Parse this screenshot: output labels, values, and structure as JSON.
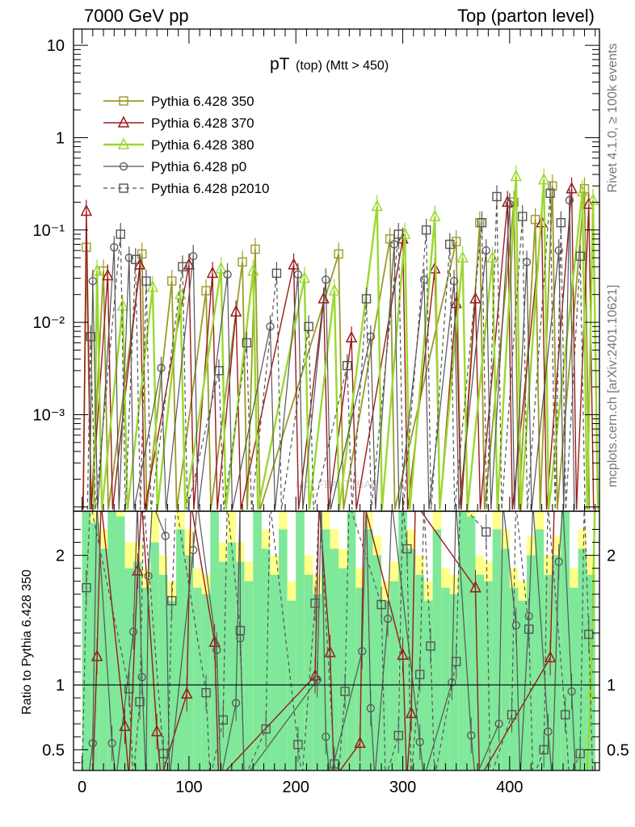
{
  "header": {
    "left": "7000 GeV pp",
    "right": "Top (parton level)"
  },
  "title": {
    "main": "pT",
    "sub": "(top) (Mtt > 450)"
  },
  "side_labels": {
    "rivet": "Rivet 4.1.0, ≥ 100k events",
    "mcplots": "mcplots.cern.ch [arXiv:2401.10621]"
  },
  "watermark": "MC_FBA_TTBAR",
  "colors": {
    "s350": "#9a9a2a",
    "s370": "#9b1b1b",
    "s380": "#9ad82e",
    "p0": "#555555",
    "p2010": "#555555",
    "band_yellow": "#ffff8a",
    "band_green": "#7fe89a"
  },
  "chart_data": [
    {
      "type": "line",
      "panel": "main",
      "title": "pT (top) (Mtt > 450)",
      "xlabel": "",
      "ylabel": "",
      "yscale": "log",
      "xlim": [
        -8,
        484
      ],
      "ylim": [
        9e-05,
        15
      ],
      "y_ticks": [
        {
          "value": 10,
          "label": "10"
        },
        {
          "value": 1,
          "label": "1"
        },
        {
          "value": 0.1,
          "label": "10⁻¹"
        },
        {
          "value": 0.01,
          "label": "10⁻²"
        },
        {
          "value": 0.001,
          "label": "10⁻³"
        }
      ],
      "legend_position": "top-left",
      "series": [
        {
          "name": "Pythia 6.428 350",
          "marker": "square",
          "style": "solid",
          "x": [
            4,
            20,
            56,
            84,
            116,
            150,
            162,
            240,
            288,
            350,
            372,
            404,
            424,
            440,
            470
          ],
          "values": [
            0.065,
            0.036,
            0.055,
            0.028,
            0.022,
            0.045,
            0.062,
            0.055,
            0.08,
            0.075,
            0.12,
            0.2,
            0.13,
            0.3,
            0.28
          ]
        },
        {
          "name": "Pythia 6.428 370",
          "marker": "triangle",
          "style": "solid",
          "x": [
            4,
            24,
            54,
            100,
            122,
            144,
            198,
            226,
            252,
            300,
            330,
            350,
            368,
            398,
            430,
            458,
            474
          ],
          "values": [
            0.16,
            0.032,
            0.042,
            0.042,
            0.034,
            0.013,
            0.042,
            0.018,
            0.0068,
            0.08,
            0.038,
            0.016,
            0.018,
            0.2,
            0.12,
            0.28,
            0.19
          ]
        },
        {
          "name": "Pythia 6.428 380",
          "marker": "triangle",
          "style": "solid",
          "x": [
            14,
            38,
            66,
            92,
            130,
            160,
            208,
            236,
            276,
            302,
            330,
            356,
            384,
            406,
            432,
            468,
            478
          ],
          "values": [
            0.036,
            0.015,
            0.024,
            0.02,
            0.038,
            0.036,
            0.03,
            0.022,
            0.18,
            0.09,
            0.14,
            0.05,
            0.05,
            0.38,
            0.35,
            0.26,
            0.21
          ]
        },
        {
          "name": "Pythia 6.428 p0",
          "marker": "circle",
          "style": "solid",
          "x": [
            10,
            30,
            44,
            74,
            104,
            136,
            176,
            202,
            228,
            270,
            292,
            320,
            348,
            378,
            400,
            416,
            446,
            456
          ],
          "values": [
            0.028,
            0.065,
            0.05,
            0.0032,
            0.052,
            0.033,
            0.009,
            0.033,
            0.029,
            0.007,
            0.07,
            0.029,
            0.028,
            0.06,
            0.19,
            0.045,
            0.06,
            0.21
          ]
        },
        {
          "name": "Pythia 6.428 p2010",
          "marker": "square",
          "style": "dashed",
          "x": [
            8,
            36,
            50,
            60,
            94,
            128,
            154,
            182,
            212,
            248,
            266,
            296,
            322,
            344,
            374,
            388,
            412,
            438,
            448,
            466
          ],
          "values": [
            0.007,
            0.09,
            0.048,
            0.028,
            0.04,
            0.003,
            0.006,
            0.034,
            0.009,
            0.0034,
            0.018,
            0.09,
            0.1,
            0.07,
            0.12,
            0.23,
            0.14,
            0.25,
            0.12,
            0.052
          ]
        }
      ]
    },
    {
      "type": "line",
      "panel": "ratio",
      "xlabel": "",
      "ylabel": "Ratio to Pythia 6.428 350",
      "yscale": "linear",
      "xlim": [
        -8,
        484
      ],
      "ylim": [
        0.34,
        2.34
      ],
      "x_ticks": [
        0,
        100,
        200,
        300,
        400
      ],
      "y_ticks": [
        0.5,
        1,
        2
      ],
      "reference_line": 1,
      "series": [
        {
          "name": "Pythia 6.428 370",
          "marker": "triangle",
          "style": "solid",
          "x": [
            14,
            40,
            52,
            70,
            98,
            124,
            218,
            232,
            260,
            300,
            308,
            368,
            438
          ],
          "values": [
            1.22,
            0.68,
            1.88,
            0.64,
            0.93,
            1.33,
            1.07,
            1.25,
            0.55,
            1.23,
            0.78,
            1.75,
            1.21
          ]
        },
        {
          "name": "Pythia 6.428 380",
          "marker": "triangle",
          "style": "solid",
          "x": [
            476
          ],
          "values": [
            0.93
          ]
        },
        {
          "name": "Pythia 6.428 p0",
          "marker": "circle",
          "style": "solid",
          "x": [
            10,
            28,
            48,
            56,
            62,
            78,
            104,
            126,
            144,
            148,
            220,
            228,
            262,
            270,
            286,
            316,
            346,
            364,
            390,
            406,
            418,
            436,
            446,
            458
          ],
          "values": [
            0.55,
            0.55,
            1.41,
            1.06,
            1.84,
            2.15,
            2.04,
            1.27,
            0.86,
            1.36,
            1.04,
            0.6,
            1.26,
            0.82,
            1.51,
            0.56,
            1.02,
            0.61,
            0.7,
            1.46,
            1.53,
            0.64,
            1.95,
            0.95
          ]
        },
        {
          "name": "Pythia 6.428 p2010",
          "marker": "square",
          "style": "dashed",
          "x": [
            4,
            44,
            54,
            76,
            84,
            116,
            132,
            148,
            172,
            202,
            218,
            236,
            246,
            280,
            296,
            304,
            316,
            326,
            350,
            378,
            402,
            418,
            432,
            452,
            466,
            474
          ],
          "values": [
            1.75,
            0.97,
            0.87,
            0.47,
            1.65,
            0.94,
            0.73,
            1.42,
            0.66,
            0.54,
            1.63,
            0.39,
            0.95,
            1.62,
            0.61,
            2.05,
            1.08,
            1.3,
            1.18,
            2.18,
            0.77,
            1.43,
            0.5,
            0.77,
            0.47,
            1.39
          ]
        }
      ],
      "band_bins_x": [
        0,
        8,
        16,
        24,
        32,
        40,
        48,
        56,
        64,
        72,
        80,
        88,
        96,
        104,
        112,
        120,
        128,
        136,
        144,
        152,
        160,
        168,
        176,
        184,
        192,
        200,
        208,
        216,
        224,
        232,
        240,
        248,
        256,
        264,
        272,
        280,
        288,
        296,
        304,
        312,
        320,
        328,
        336,
        344,
        352,
        360,
        368,
        376,
        384,
        392,
        400,
        408,
        416,
        424,
        432,
        440,
        448,
        456,
        464,
        472
      ],
      "band_yellow_upper": [
        2.34,
        2.34,
        2.2,
        2.34,
        2.34,
        2.1,
        2.1,
        1.9,
        2.34,
        2.0,
        1.8,
        2.34,
        2.2,
        1.9,
        1.85,
        2.34,
        2.1,
        2.34,
        2.1,
        1.95,
        2.34,
        2.2,
        2.0,
        2.34,
        1.8,
        2.34,
        2.0,
        1.85,
        2.34,
        2.2,
        2.05,
        2.34,
        1.9,
        2.34,
        2.15,
        1.8,
        1.95,
        2.34,
        2.2,
        2.0,
        1.8,
        2.34,
        1.9,
        1.85,
        2.34,
        2.34,
        2.0,
        1.95,
        2.34,
        2.2,
        1.9,
        1.8,
        2.15,
        2.34,
        2.0,
        2.15,
        2.34,
        1.9,
        2.2,
        2.0
      ],
      "band_green_upper": [
        2.34,
        2.25,
        2.05,
        2.34,
        2.3,
        1.9,
        1.95,
        1.75,
        2.1,
        1.85,
        1.65,
        2.2,
        2.0,
        1.75,
        1.7,
        2.34,
        1.95,
        2.1,
        1.95,
        1.8,
        2.34,
        2.05,
        1.85,
        2.2,
        1.65,
        2.34,
        1.85,
        1.7,
        2.2,
        2.05,
        1.9,
        2.34,
        1.75,
        2.2,
        2.0,
        1.65,
        1.8,
        2.34,
        2.05,
        1.85,
        1.65,
        2.2,
        1.75,
        1.7,
        2.34,
        2.3,
        1.85,
        1.8,
        2.2,
        2.05,
        1.75,
        1.65,
        2.0,
        2.2,
        1.85,
        2.0,
        2.34,
        1.75,
        2.05,
        1.85
      ]
    }
  ]
}
